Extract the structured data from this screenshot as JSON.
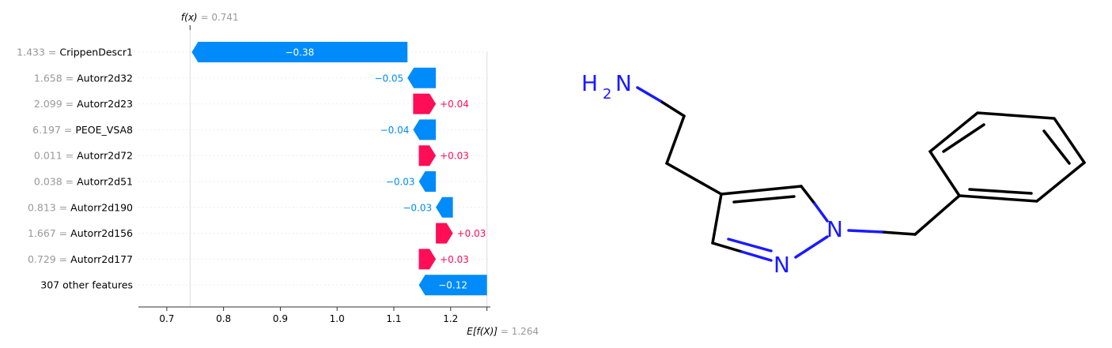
{
  "chart_data": {
    "type": "waterfall",
    "fx_label": "f(x)",
    "fx_value": "0.741",
    "efx_label": "E[f(X)]",
    "efx_value": "1.264",
    "base_value": 1.264,
    "final_value": 0.741,
    "xlim": [
      0.65,
      1.27
    ],
    "xticks": [
      0.7,
      0.8,
      0.9,
      1.0,
      1.1,
      1.2
    ],
    "xtick_labels": [
      "0.7",
      "0.8",
      "0.9",
      "1.0",
      "1.1",
      "1.2"
    ],
    "positive_color": "#ff0d57",
    "negative_color": "#008bfb",
    "features": [
      {
        "value_text": "1.433 =",
        "name": "CrippenDescr1",
        "contribution": -0.38,
        "label": "−0.38"
      },
      {
        "value_text": "1.658 =",
        "name": "Autorr2d32",
        "contribution": -0.05,
        "label": "−0.05"
      },
      {
        "value_text": "2.099 =",
        "name": "Autorr2d23",
        "contribution": 0.04,
        "label": "+0.04"
      },
      {
        "value_text": "6.197 =",
        "name": "PEOE_VSA8",
        "contribution": -0.04,
        "label": "−0.04"
      },
      {
        "value_text": "0.011 =",
        "name": "Autorr2d72",
        "contribution": 0.03,
        "label": "+0.03"
      },
      {
        "value_text": "0.038 =",
        "name": "Autorr2d51",
        "contribution": -0.03,
        "label": "−0.03"
      },
      {
        "value_text": "0.813 =",
        "name": "Autorr2d190",
        "contribution": -0.03,
        "label": "−0.03"
      },
      {
        "value_text": "1.667 =",
        "name": "Autorr2d156",
        "contribution": 0.03,
        "label": "+0.03"
      },
      {
        "value_text": "0.729 =",
        "name": "Autorr2d177",
        "contribution": 0.03,
        "label": "+0.03"
      },
      {
        "value_text": "",
        "name": "307 other features",
        "contribution": -0.12,
        "label": "−0.12"
      }
    ]
  },
  "molecule": {
    "atom_labels": [
      "H",
      "2",
      "N",
      "N",
      "N"
    ]
  }
}
